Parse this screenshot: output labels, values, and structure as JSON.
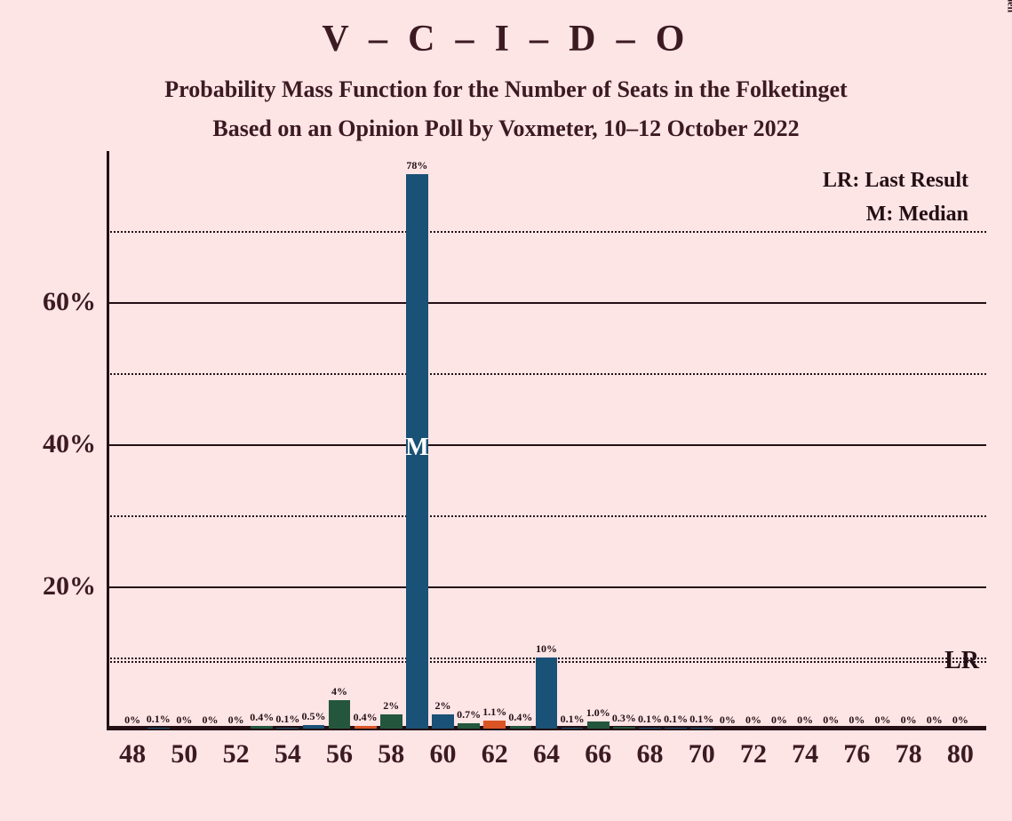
{
  "title": "V – C – I – D – O",
  "subtitle1": "Probability Mass Function for the Number of Seats in the Folketinget",
  "subtitle2": "Based on an Opinion Poll by Voxmeter, 10–12 October 2022",
  "legend": {
    "lr": "LR: Last Result",
    "m": "M: Median"
  },
  "copyright": "© 2022 Filip van Laenen",
  "chart": {
    "type": "bar",
    "background_color": "#fde4e5",
    "text_color": "#3b1a22",
    "axis_color": "#230f14",
    "title_fontsize": 42,
    "subtitle_fontsize": 26,
    "y_axis": {
      "min": 0,
      "max": 80,
      "major_ticks": [
        0,
        20,
        40,
        60
      ],
      "minor_ticks": [
        10,
        30,
        50,
        70
      ],
      "major_labels": [
        "",
        "20%",
        "40%",
        "60%"
      ],
      "label_fontsize": 30
    },
    "x_axis": {
      "min": 48,
      "max": 80,
      "tick_step": 2,
      "labels": [
        "48",
        "50",
        "52",
        "54",
        "56",
        "58",
        "60",
        "62",
        "64",
        "66",
        "68",
        "70",
        "72",
        "74",
        "76",
        "78",
        "80"
      ],
      "label_fontsize": 30
    },
    "lr_line": {
      "value": 9.5,
      "label": "LR",
      "fontsize": 28
    },
    "median_bar_index": 11,
    "median_label": "M",
    "bar_width_ratio": 0.85,
    "bar_label_fontsize": 12,
    "bars": [
      {
        "x": 48,
        "value": 0,
        "label": "0%",
        "color": "#1a5176"
      },
      {
        "x": 49,
        "value": 0.1,
        "label": "0.1%",
        "color": "#1a5176"
      },
      {
        "x": 50,
        "value": 0,
        "label": "0%",
        "color": "#24563d"
      },
      {
        "x": 51,
        "value": 0,
        "label": "0%",
        "color": "#24563d"
      },
      {
        "x": 52,
        "value": 0,
        "label": "0%",
        "color": "#24563d"
      },
      {
        "x": 53,
        "value": 0.4,
        "label": "0.4%",
        "color": "#24563d"
      },
      {
        "x": 54,
        "value": 0.1,
        "label": "0.1%",
        "color": "#1a5176"
      },
      {
        "x": 55,
        "value": 0.5,
        "label": "0.5%",
        "color": "#1a5176"
      },
      {
        "x": 56,
        "value": 4,
        "label": "4%",
        "color": "#24563d"
      },
      {
        "x": 57,
        "value": 0.4,
        "label": "0.4%",
        "color": "#db5426"
      },
      {
        "x": 58,
        "value": 2,
        "label": "2%",
        "color": "#24563d"
      },
      {
        "x": 59,
        "value": 78,
        "label": "78%",
        "color": "#1a5176"
      },
      {
        "x": 60,
        "value": 2,
        "label": "2%",
        "color": "#1a5176"
      },
      {
        "x": 61,
        "value": 0.7,
        "label": "0.7%",
        "color": "#24563d"
      },
      {
        "x": 62,
        "value": 1.1,
        "label": "1.1%",
        "color": "#db5426"
      },
      {
        "x": 63,
        "value": 0.4,
        "label": "0.4%",
        "color": "#24563d"
      },
      {
        "x": 64,
        "value": 10,
        "label": "10%",
        "color": "#1a5176"
      },
      {
        "x": 65,
        "value": 0.1,
        "label": "0.1%",
        "color": "#1a5176"
      },
      {
        "x": 66,
        "value": 1.0,
        "label": "1.0%",
        "color": "#24563d"
      },
      {
        "x": 67,
        "value": 0.3,
        "label": "0.3%",
        "color": "#24563d"
      },
      {
        "x": 68,
        "value": 0.1,
        "label": "0.1%",
        "color": "#1a5176"
      },
      {
        "x": 69,
        "value": 0.1,
        "label": "0.1%",
        "color": "#1a5176"
      },
      {
        "x": 70,
        "value": 0.1,
        "label": "0.1%",
        "color": "#1a5176"
      },
      {
        "x": 71,
        "value": 0,
        "label": "0%",
        "color": "#1a5176"
      },
      {
        "x": 72,
        "value": 0,
        "label": "0%",
        "color": "#1a5176"
      },
      {
        "x": 73,
        "value": 0,
        "label": "0%",
        "color": "#1a5176"
      },
      {
        "x": 74,
        "value": 0,
        "label": "0%",
        "color": "#1a5176"
      },
      {
        "x": 75,
        "value": 0,
        "label": "0%",
        "color": "#1a5176"
      },
      {
        "x": 76,
        "value": 0,
        "label": "0%",
        "color": "#1a5176"
      },
      {
        "x": 77,
        "value": 0,
        "label": "0%",
        "color": "#1a5176"
      },
      {
        "x": 78,
        "value": 0,
        "label": "0%",
        "color": "#1a5176"
      },
      {
        "x": 79,
        "value": 0,
        "label": "0%",
        "color": "#1a5176"
      },
      {
        "x": 80,
        "value": 0,
        "label": "0%",
        "color": "#1a5176"
      }
    ]
  }
}
